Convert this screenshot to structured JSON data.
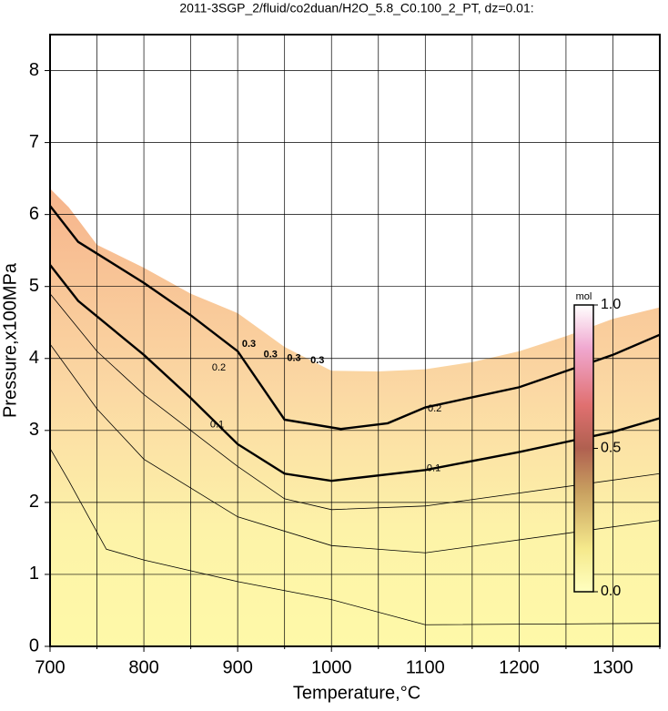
{
  "chart_data": {
    "type": "contour",
    "title": "2011-3SGP_2/fluid/co2duan/H2O_5.8_C0.100_2_PT, dz=0.01:",
    "x_label": "Temperature,°C",
    "y_label": "Pressure,x100MPa",
    "xlim": [
      700,
      1350
    ],
    "ylim": [
      0,
      8.5
    ],
    "xticks": [
      700,
      800,
      900,
      1000,
      1100,
      1200,
      1300
    ],
    "xminor": [
      750,
      850,
      950,
      1050,
      1150,
      1250,
      1350
    ],
    "yticks": [
      0,
      1,
      2,
      3,
      4,
      5,
      6,
      7,
      8
    ],
    "grid": true,
    "boundary": {
      "x": [
        700,
        720,
        750,
        800,
        850,
        900,
        950,
        1000,
        1050,
        1100,
        1150,
        1200,
        1250,
        1300,
        1350
      ],
      "y": [
        6.36,
        6.1,
        5.58,
        5.26,
        4.9,
        4.63,
        4.16,
        3.83,
        3.82,
        3.85,
        3.95,
        4.1,
        4.31,
        4.55,
        4.71
      ]
    },
    "contours": [
      {
        "x": [
          700,
          730,
          800,
          850,
          900,
          950,
          1010,
          1060,
          1100,
          1200,
          1300,
          1350
        ],
        "y": [
          6.12,
          5.62,
          5.05,
          4.6,
          4.1,
          3.15,
          3.02,
          3.1,
          3.32,
          3.6,
          4.05,
          4.33
        ],
        "label": "0.2",
        "label_at": [
          [
            880,
            3.87
          ],
          [
            1110,
            3.3
          ]
        ],
        "bold": true
      },
      {
        "x": [
          700,
          730,
          800,
          850,
          900,
          950,
          1000,
          1100,
          1200,
          1300,
          1350
        ],
        "y": [
          5.3,
          4.8,
          4.05,
          3.45,
          2.81,
          2.4,
          2.3,
          2.45,
          2.7,
          2.98,
          3.17
        ],
        "label": "0.1",
        "label_at": [
          [
            878,
            3.08
          ],
          [
            1109,
            2.47
          ]
        ],
        "bold": true
      },
      {
        "x": [
          700,
          750,
          800,
          900,
          950,
          1000,
          1100,
          1350
        ],
        "y": [
          4.9,
          4.1,
          3.5,
          2.5,
          2.05,
          1.9,
          1.95,
          2.4
        ]
      },
      {
        "x": [
          700,
          750,
          800,
          900,
          1000,
          1100,
          1350
        ],
        "y": [
          4.2,
          3.3,
          2.6,
          1.8,
          1.4,
          1.3,
          1.75
        ]
      },
      {
        "x": [
          700,
          720,
          760,
          800,
          900,
          1000,
          1100,
          1350
        ],
        "y": [
          2.75,
          2.3,
          1.35,
          1.2,
          0.9,
          0.65,
          0.3,
          0.32
        ]
      }
    ],
    "annotations": [
      {
        "text": "0.3",
        "x": 912,
        "y": 4.2
      },
      {
        "text": "0.3",
        "x": 935,
        "y": 4.05
      },
      {
        "text": "0.3",
        "x": 960,
        "y": 4.0
      },
      {
        "text": "0.3",
        "x": 985,
        "y": 3.97
      }
    ],
    "colorbar": {
      "label": "mol",
      "lim": [
        0,
        1
      ],
      "ticks": [
        {
          "value": 0,
          "label": "0.0"
        },
        {
          "value": 0.5,
          "label": "0.5"
        },
        {
          "value": 1,
          "label": "1.0"
        }
      ]
    }
  }
}
